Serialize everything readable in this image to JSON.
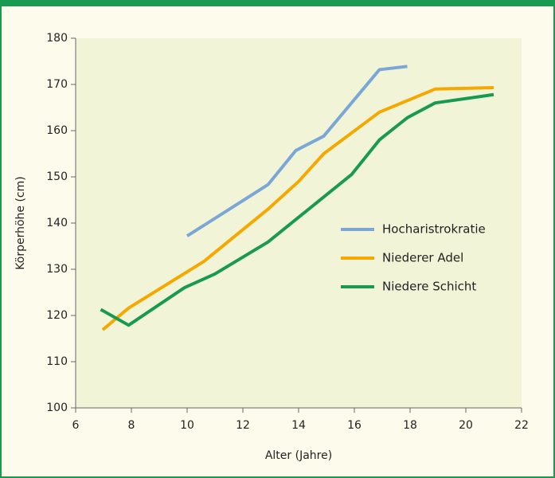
{
  "chart_data": {
    "type": "line",
    "xlabel": "Alter (Jahre)",
    "ylabel": "Körperhöhe (cm)",
    "xlim": [
      6,
      22
    ],
    "xticks": [
      6,
      8,
      10,
      12,
      14,
      16,
      18,
      20,
      22
    ],
    "ylim": [
      100,
      180
    ],
    "yticks": [
      100,
      110,
      120,
      130,
      140,
      150,
      160,
      170,
      180
    ],
    "grid": false,
    "legend": "right",
    "series": [
      {
        "name": "Hocharistrokratie",
        "color": "#7ba7d6",
        "x": [
          10,
          12.9,
          13.9,
          14.9,
          16.9,
          17.9
        ],
        "values": [
          137.2,
          148.3,
          155.7,
          158.8,
          173.2,
          173.9
        ]
      },
      {
        "name": "Niederer Adel",
        "color": "#f5a800",
        "x": [
          6.97,
          7.9,
          10.6,
          12.9,
          14,
          14.9,
          16.9,
          18.9,
          21
        ],
        "values": [
          116.9,
          121.6,
          131.7,
          143,
          149,
          155,
          164,
          169,
          169.3
        ]
      },
      {
        "name": "Niedere Schicht",
        "color": "#1a9950",
        "x": [
          6.9,
          7.9,
          9.9,
          11,
          12.9,
          15.9,
          16.9,
          17.9,
          18.9,
          21
        ],
        "values": [
          121.3,
          117.9,
          126,
          129,
          135.9,
          150.5,
          158,
          162.8,
          166,
          167.8
        ]
      }
    ]
  }
}
